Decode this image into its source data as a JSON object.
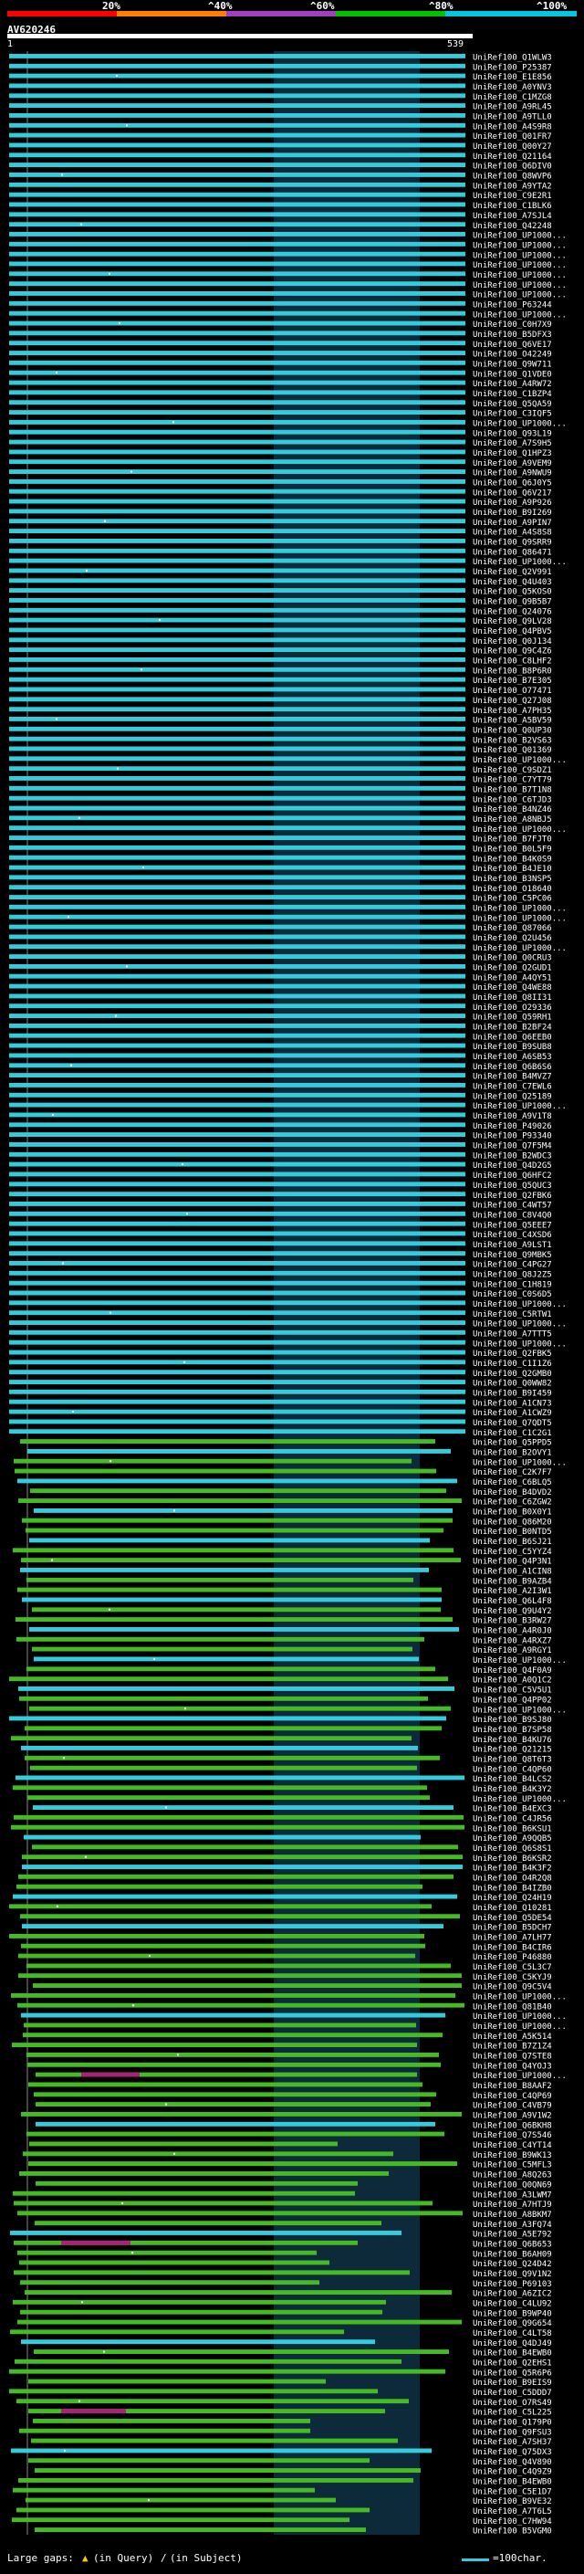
{
  "scale": {
    "labels": [
      "20%",
      "^40%",
      "^60%",
      "^80%",
      "^100%"
    ],
    "segments": [
      "#ff0000",
      "#ff8000",
      "#a040c0",
      "#00c000",
      "#00c8e0"
    ]
  },
  "query": {
    "id": "AV620246",
    "start": "1",
    "end": "539"
  },
  "colors": {
    "cyan": "#33ccdd",
    "green": "#44bb22",
    "magenta": "#aa2277",
    "stripe": "#0d2a3a",
    "label": "#ffffff"
  },
  "hits_labels": [
    "UniRef100_Q1WLW3",
    "UniRef100_P25387",
    "UniRef100_E1E856",
    "UniRef100_A0YNV3",
    "UniRef100_C1MZG8",
    "UniRef100_A9RL45",
    "UniRef100_A9TLL0",
    "UniRef100_A4S9R8",
    "UniRef100_Q01FR7",
    "UniRef100_Q00Y27",
    "UniRef100_Q21164",
    "UniRef100_Q6DIV0",
    "UniRef100_Q8WVP6",
    "UniRef100_A9YTA2",
    "UniRef100_C9E2R1",
    "UniRef100_C1BLK6",
    "UniRef100_A7SJL4",
    "UniRef100_Q42248",
    "UniRef100_UP1000...",
    "UniRef100_UP1000...",
    "UniRef100_UP1000...",
    "UniRef100_UP1000...",
    "UniRef100_UP1000...",
    "UniRef100_UP1000...",
    "UniRef100_UP1000...",
    "UniRef100_P63244",
    "UniRef100_UP1000...",
    "UniRef100_C0H7X9",
    "UniRef100_B5DFX3",
    "UniRef100_Q6VE17",
    "UniRef100_O42249",
    "UniRef100_Q9W711",
    "UniRef100_Q1VDE0",
    "UniRef100_A4RW72",
    "UniRef100_C1BZP4",
    "UniRef100_Q5QA59",
    "UniRef100_C3IQF5",
    "UniRef100_UP1000...",
    "UniRef100_Q93L19",
    "UniRef100_A7S9H5",
    "UniRef100_Q1HPZ3",
    "UniRef100_A9VEM9",
    "UniRef100_A9NWU9",
    "UniRef100_Q6J0Y5",
    "UniRef100_Q6V217",
    "UniRef100_A9P926",
    "UniRef100_B9I269",
    "UniRef100_A9PIN7",
    "UniRef100_A4S8S8",
    "UniRef100_Q9SRR9",
    "UniRef100_Q86471",
    "UniRef100_UP1000...",
    "UniRef100_Q2V991",
    "UniRef100_Q4U403",
    "UniRef100_Q5KOS0",
    "UniRef100_Q9B5B7",
    "UniRef100_Q24076",
    "UniRef100_Q9LV28",
    "UniRef100_Q4PBV5",
    "UniRef100_Q0J134",
    "UniRef100_Q9C4Z6",
    "UniRef100_C8LHF2",
    "UniRef100_B8P6R0",
    "UniRef100_B7E305",
    "UniRef100_O77471",
    "UniRef100_Q27J08",
    "UniRef100_A7PH35",
    "UniRef100_A5BV59",
    "UniRef100_Q0UP30",
    "UniRef100_B2VS63",
    "UniRef100_Q01369",
    "UniRef100_UP1000...",
    "UniRef100_C9SDZ1",
    "UniRef100_C7YT79",
    "UniRef100_B7T1N8",
    "UniRef100_C6TJD3",
    "UniRef100_B4NZ46",
    "UniRef100_A8NBJ5",
    "UniRef100_UP1000...",
    "UniRef100_B7FJT0",
    "UniRef100_B0L5F9",
    "UniRef100_B4K0S9",
    "UniRef100_B4JE10",
    "UniRef100_B3NSP5",
    "UniRef100_O18640",
    "UniRef100_C5PC06",
    "UniRef100_UP1000...",
    "UniRef100_UP1000...",
    "UniRef100_Q87066",
    "UniRef100_Q2U456",
    "UniRef100_UP1000...",
    "UniRef100_Q0CRU3",
    "UniRef100_Q2GUD1",
    "UniRef100_A4QY51",
    "UniRef100_Q4WE88",
    "UniRef100_Q8II31",
    "UniRef100_O29336",
    "UniRef100_Q59RH1",
    "UniRef100_B2BF24",
    "UniRef100_Q6EEB0",
    "UniRef100_B9SUB8",
    "UniRef100_A6SB53",
    "UniRef100_Q6B6S6",
    "UniRef100_B4MVZ7",
    "UniRef100_C7EWL6",
    "UniRef100_Q25189",
    "UniRef100_UP1000...",
    "UniRef100_A9V1T8",
    "UniRef100_P49026",
    "UniRef100_P93340",
    "UniRef100_Q7F5M4",
    "UniRef100_B2WDC3",
    "UniRef100_Q4D2G5",
    "UniRef100_Q6HFC2",
    "UniRef100_Q5QUC3",
    "UniRef100_Q2FBK6",
    "UniRef100_C4WT57",
    "UniRef100_C8V4Q0",
    "UniRef100_Q5EEE7",
    "UniRef100_C4XSD6",
    "UniRef100_A9LST1",
    "UniRef100_Q9MBK5",
    "UniRef100_C4PG27",
    "UniRef100_Q8J2Z5",
    "UniRef100_C1H819",
    "UniRef100_C0S6D5",
    "UniRef100_UP1000...",
    "UniRef100_C5RTW1",
    "UniRef100_UP1000...",
    "UniRef100_A7TTT5",
    "UniRef100_UP1000...",
    "UniRef100_Q2FBK5",
    "UniRef100_C1I1Z6",
    "UniRef100_Q2GMB0",
    "UniRef100_Q0WW82",
    "UniRef100_B9I459",
    "UniRef100_A1CN73",
    "UniRef100_A1CWZ9",
    "UniRef100_Q7QDT5",
    "UniRef100_C1C2G1",
    "UniRef100_Q5PPD5",
    "UniRef100_B2OVY1",
    "UniRef100_UP1000...",
    "UniRef100_C2K7F7",
    "UniRef100_C6BLQ5",
    "UniRef100_B4DVD2",
    "UniRef100_C6ZGW2",
    "UniRef100_B0X0Y1",
    "UniRef100_Q86M20",
    "UniRef100_B0NTD5",
    "UniRef100_B6SJ21",
    "UniRef100_C5YYZ4",
    "UniRef100_Q4P3N1",
    "UniRef100_A1CIN8",
    "UniRef100_B9AZB4",
    "UniRef100_A2I3W1",
    "UniRef100_Q6L4F8",
    "UniRef100_Q9U4Y2",
    "UniRef100_B3RW27",
    "UniRef100_A4R0J0",
    "UniRef100_A4RXZ7",
    "UniRef100_A9RGY1",
    "UniRef100_UP1000...",
    "UniRef100_Q4F0A9",
    "UniRef100_A0Q1C2",
    "UniRef100_C5V5U1",
    "UniRef100_Q4PP02",
    "UniRef100_UP1000...",
    "UniRef100_B9SJ80",
    "UniRef100_B7SP58",
    "UniRef100_B4KU76",
    "UniRef100_Q21215",
    "UniRef100_Q8T6T3",
    "UniRef100_C4QP60",
    "UniRef100_B4LCS2",
    "UniRef100_B4K3Y2",
    "UniRef100_UP1000...",
    "UniRef100_B4EXC3",
    "UniRef100_C4JR56",
    "UniRef100_B6KSU1",
    "UniRef100_A9QQB5",
    "UniRef100_Q6S8S1",
    "UniRef100_B6KSR2",
    "UniRef100_B4K3F2",
    "UniRef100_O4R2Q8",
    "UniRef100_B4IZB0",
    "UniRef100_Q24H19",
    "UniRef100_Q10281",
    "UniRef100_Q5DE54",
    "UniRef100_B5DCH7",
    "UniRef100_A7LH77",
    "UniRef100_B4CIR6",
    "UniRef100_P46880",
    "UniRef100_C5L3C7",
    "UniRef100_C5KYJ9",
    "UniRef100_Q9C5V4",
    "UniRef100_UP1000...",
    "UniRef100_Q81B40",
    "UniRef100_UP1000...",
    "UniRef100_UP1000...",
    "UniRef100_A5K514",
    "UniRef100_B7Z1Z4",
    "UniRef100_Q7STE8",
    "UniRef100_Q4YOJ3",
    "UniRef100_UP1000...",
    "UniRef100_B8AAF2",
    "UniRef100_C4QP69",
    "UniRef100_C4VB79",
    "UniRef100_A9V1W2",
    "UniRef100_Q6BKH8",
    "UniRef100_Q7S546",
    "UniRef100_C4YT14",
    "UniRef100_B9WK13",
    "UniRef100_C5MFL3",
    "UniRef100_A8Q263",
    "UniRef100_Q0QN69",
    "UniRef100_A3LWM7",
    "UniRef100_A7HTJ9",
    "UniRef100_A8BKM7",
    "UniRef100_A3FQ74",
    "UniRef100_A5E792",
    "UniRef100_Q6B653",
    "UniRef100_B6AH09",
    "UniRef100_Q24D42",
    "UniRef100_Q9V1N2",
    "UniRef100_P69103",
    "UniRef100_A6ZIC2",
    "UniRef100_C4LU92",
    "UniRef100_B9WP40",
    "UniRef100_Q9G654",
    "UniRef100_C4LT58",
    "UniRef100_Q4DJ49",
    "UniRef100_B4EWB0",
    "UniRef100_Q2EHS1",
    "UniRef100_Q5R6P6",
    "UniRef100_B9EIS9",
    "UniRef100_C5DDD7",
    "UniRef100_O7RS49",
    "UniRef100_C5L225",
    "UniRef100_Q179P0",
    "UniRef100_Q9FSU3",
    "UniRef100_A7SH37",
    "UniRef100_Q75DX3",
    "UniRef100_Q4V890",
    "UniRef100_C4Q9Z9",
    "UniRef100_B4EWB0",
    "UniRef100_C5E1D7",
    "UniRef100_B9VE32",
    "UniRef100_A7T6L5",
    "UniRef100_C7HW94",
    "UniRef100_B5VGM0"
  ],
  "legend": {
    "large_gaps": "Large gaps:",
    "in_query": "(in Query)",
    "in_subject": "(in Subject)",
    "scale_note": "=100char."
  }
}
